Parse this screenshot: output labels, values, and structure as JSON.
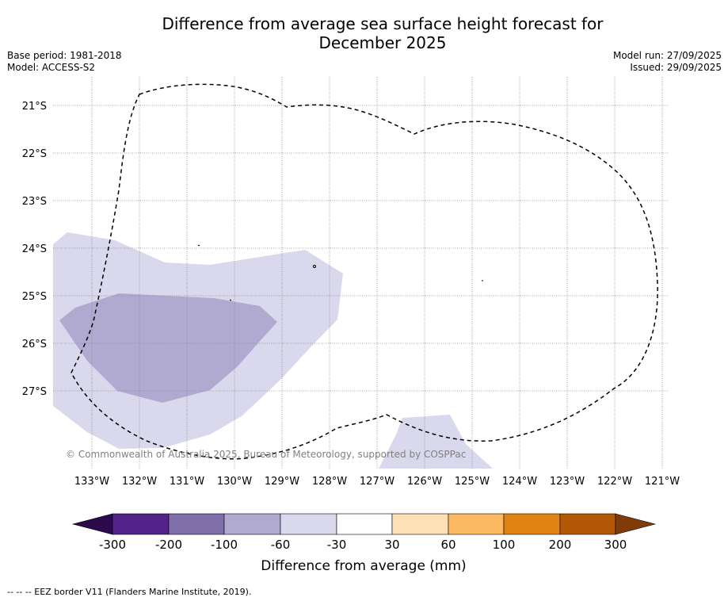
{
  "title_line1": "Difference from average sea surface height forecast for",
  "title_line2": "December 2025",
  "base_period": "Base period: 1981-2018",
  "model": "Model: ACCESS-S2",
  "model_run": "Model run: 27/09/2025",
  "issued": "Issued: 29/09/2025",
  "copyright": "© Commonwealth of Australia 2025, Bureau of Meteorology, supported by COSPPac",
  "footer": "--  --  -- EEZ border V11 (Flanders Marine Institute, 2019).",
  "lat_labels": [
    "21°S",
    "22°S",
    "23°S",
    "24°S",
    "25°S",
    "26°S",
    "27°S"
  ],
  "lon_labels": [
    "133°W",
    "132°W",
    "131°W",
    "130°W",
    "129°W",
    "128°W",
    "127°W",
    "126°W",
    "125°W",
    "124°W",
    "123°W",
    "122°W",
    "121°W"
  ],
  "colorbar": {
    "label": "Difference from average (mm)",
    "ticks": [
      "-300",
      "-200",
      "-100",
      "-60",
      "-30",
      "30",
      "60",
      "100",
      "200",
      "300"
    ],
    "colors": [
      "#2d0a4e",
      "#54238a",
      "#7f6fab",
      "#b0a9d0",
      "#d9d8ec",
      "#ffffff",
      "#fee0b6",
      "#fdb863",
      "#e08214",
      "#b35806",
      "#7f3b08"
    ]
  }
}
